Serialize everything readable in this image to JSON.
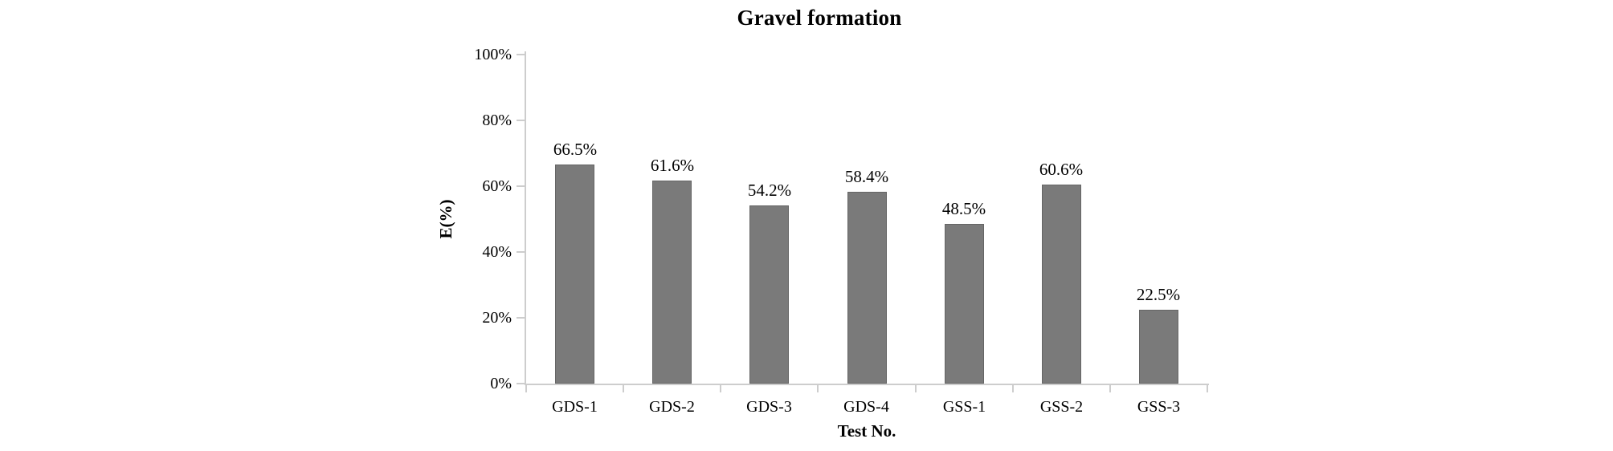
{
  "chart_data": {
    "type": "bar",
    "title": "Gravel formation",
    "xlabel": "Test No.",
    "ylabel": "E(%)",
    "categories": [
      "GDS-1",
      "GDS-2",
      "GDS-3",
      "GDS-4",
      "GSS-1",
      "GSS-2",
      "GSS-3"
    ],
    "values": [
      66.5,
      61.6,
      54.2,
      58.4,
      48.5,
      60.6,
      22.5
    ],
    "value_labels": [
      "66.5%",
      "61.6%",
      "54.2%",
      "58.4%",
      "48.5%",
      "60.6%",
      "22.5%"
    ],
    "y_tick_labels": [
      "0%",
      "20%",
      "40%",
      "60%",
      "80%",
      "100%"
    ],
    "y_tick_values": [
      0,
      20,
      40,
      60,
      80,
      100
    ],
    "ylim": [
      0,
      100
    ],
    "grid": false,
    "legend": "none",
    "colors": {
      "bar_fill": "#7a7a7a",
      "bar_border": "#656565",
      "axis": "#cdcdcd",
      "text": "#000000",
      "background": "#ffffff"
    }
  }
}
